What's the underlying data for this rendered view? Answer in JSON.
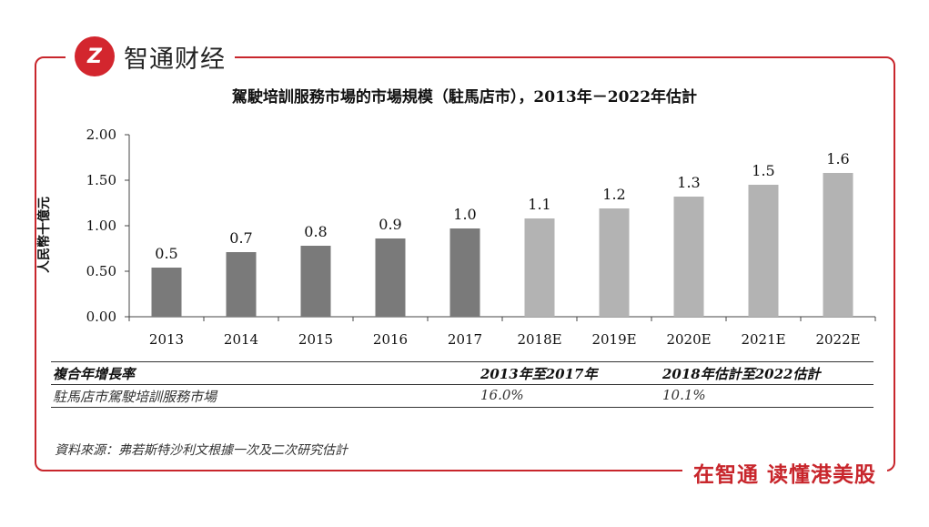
{
  "brand": {
    "logo_text": "Z",
    "name": "智通财经",
    "slogan": "在智通 读懂港美股"
  },
  "colors": {
    "frame": "#c8262c",
    "actual_bar": "#7a7a7a",
    "estimate_bar": "#b3b3b3",
    "axis": "#444444"
  },
  "chart_data": {
    "type": "bar",
    "title": "駕駛培訓服務市場的市場規模（駐馬店市），2013年－2022年估計",
    "xlabel": "",
    "ylabel": "人民幣十億元",
    "categories": [
      "2013",
      "2014",
      "2015",
      "2016",
      "2017",
      "2018E",
      "2019E",
      "2020E",
      "2021E",
      "2022E"
    ],
    "values": [
      0.54,
      0.71,
      0.78,
      0.86,
      0.97,
      1.08,
      1.19,
      1.32,
      1.45,
      1.58
    ],
    "data_labels": [
      "0.5",
      "0.7",
      "0.8",
      "0.9",
      "1.0",
      "1.1",
      "1.2",
      "1.3",
      "1.5",
      "1.6"
    ],
    "yticks": [
      "0.00",
      "0.50",
      "1.00",
      "1.50",
      "2.00"
    ],
    "ylim": [
      0,
      2.0
    ],
    "grid": false,
    "estimate_from_index": 5
  },
  "cagr_table": {
    "header": {
      "label": "複合年增長率",
      "period1": "2013年至2017年",
      "period2": "2018年估計至2022估計"
    },
    "row": {
      "label": "駐馬店市駕駛培訓服務市場",
      "value1": "16.0%",
      "value2": "10.1%"
    }
  },
  "source": "資料來源：弗若斯特沙利文根據一次及二次研究估計"
}
